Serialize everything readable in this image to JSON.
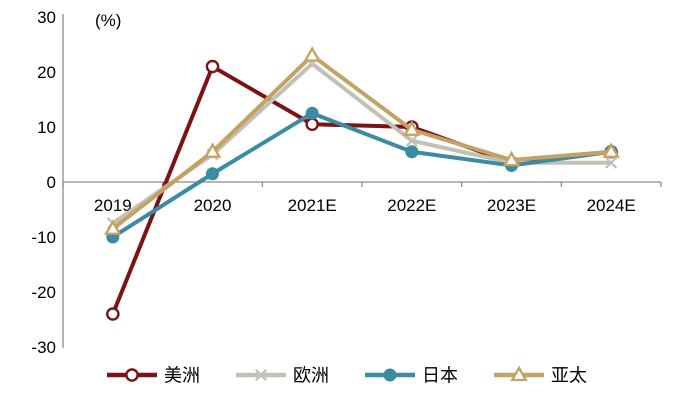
{
  "chart_data": {
    "type": "line",
    "ylabel": "(%)",
    "categories": [
      "2019",
      "2020",
      "2021E",
      "2022E",
      "2023E",
      "2024E"
    ],
    "series": [
      {
        "name": "美洲",
        "color": "#7B1315",
        "marker": "open-circle",
        "values": [
          -24,
          21,
          10.5,
          10,
          3.5,
          5.5
        ]
      },
      {
        "name": "欧洲",
        "color": "#C2C1B5",
        "marker": "x-cross",
        "values": [
          -7.5,
          5,
          21.5,
          7.5,
          3.5,
          3.5
        ]
      },
      {
        "name": "日本",
        "color": "#3B8CA3",
        "marker": "filled-circle",
        "values": [
          -10,
          1.5,
          12.5,
          5.5,
          3,
          5.5
        ]
      },
      {
        "name": "亚太",
        "color": "#C5A263",
        "marker": "open-triangle",
        "values": [
          -8.5,
          5.5,
          23,
          9.5,
          4,
          5.5
        ]
      }
    ],
    "ylim": [
      -30,
      30
    ],
    "yticks": [
      30,
      20,
      10,
      0,
      -10,
      -20,
      -30
    ],
    "grid": false,
    "legend_position": "bottom",
    "axis_color": "#8C8C8C",
    "text_color": "#000000"
  }
}
